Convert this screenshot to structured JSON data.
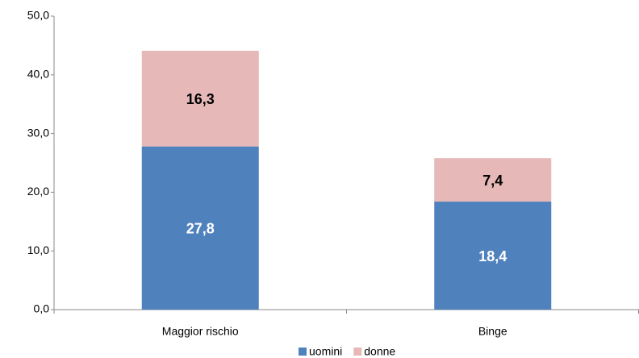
{
  "chart_data": {
    "type": "bar",
    "stacked": true,
    "categories": [
      "Maggior rischio",
      "Binge"
    ],
    "series": [
      {
        "name": "uomini",
        "color": "#4f81bd",
        "values": [
          27.8,
          18.4
        ],
        "value_labels": [
          "27,8",
          "18,4"
        ],
        "label_color": "#ffffff"
      },
      {
        "name": "donne",
        "color": "#e6b9b8",
        "values": [
          16.3,
          7.4
        ],
        "value_labels": [
          "16,3",
          "7,4"
        ],
        "label_color": "#000000"
      }
    ],
    "ylim": [
      0,
      50
    ],
    "yticks": [
      {
        "value": 0,
        "label": "0,0"
      },
      {
        "value": 10,
        "label": "10,0"
      },
      {
        "value": 20,
        "label": "20,0"
      },
      {
        "value": 30,
        "label": "30,0"
      },
      {
        "value": 40,
        "label": "40,0"
      },
      {
        "value": 50,
        "label": "50,0"
      }
    ],
    "legend": "bottom",
    "grid": false
  }
}
